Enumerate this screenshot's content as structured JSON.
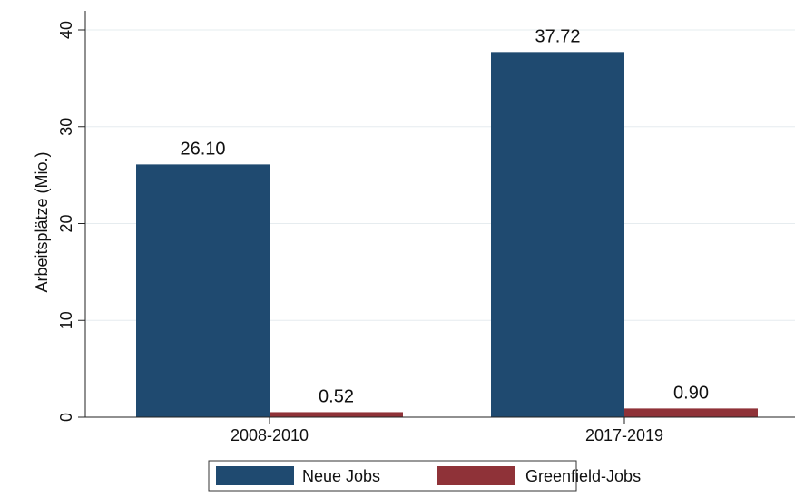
{
  "chart_data": {
    "type": "bar",
    "categories": [
      "2008-2010",
      "2017-2019"
    ],
    "series": [
      {
        "name": "Neue Jobs",
        "color": "#1f4a70",
        "values": [
          26.1,
          37.72
        ],
        "labels": [
          "26.10",
          "37.72"
        ]
      },
      {
        "name": "Greenfield-Jobs",
        "color": "#8f3238",
        "values": [
          0.52,
          0.9
        ],
        "labels": [
          "0.52",
          "0.90"
        ]
      }
    ],
    "yticks": [
      0,
      10,
      20,
      30,
      40
    ],
    "ytick_labels": [
      "0",
      "10",
      "20",
      "30",
      "40"
    ],
    "ylim": [
      0,
      42
    ],
    "ylabel": "Arbeitsplätze (Mio.)",
    "xlabel": "",
    "title": "",
    "grid": true,
    "legend_position": "bottom"
  }
}
